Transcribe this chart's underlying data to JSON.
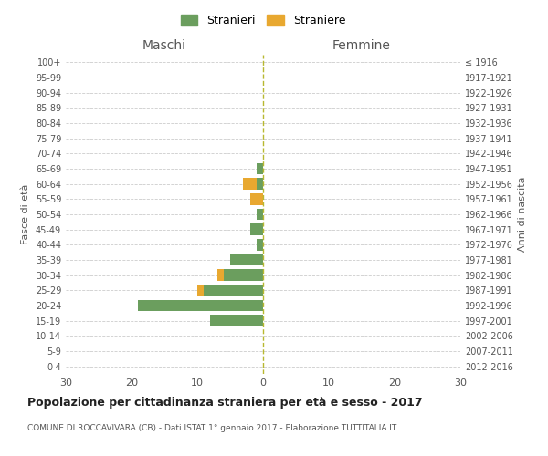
{
  "age_groups": [
    "0-4",
    "5-9",
    "10-14",
    "15-19",
    "20-24",
    "25-29",
    "30-34",
    "35-39",
    "40-44",
    "45-49",
    "50-54",
    "55-59",
    "60-64",
    "65-69",
    "70-74",
    "75-79",
    "80-84",
    "85-89",
    "90-94",
    "95-99",
    "100+"
  ],
  "birth_years": [
    "2012-2016",
    "2007-2011",
    "2002-2006",
    "1997-2001",
    "1992-1996",
    "1987-1991",
    "1982-1986",
    "1977-1981",
    "1972-1976",
    "1967-1971",
    "1962-1966",
    "1957-1961",
    "1952-1956",
    "1947-1951",
    "1942-1946",
    "1937-1941",
    "1932-1936",
    "1927-1931",
    "1922-1926",
    "1917-1921",
    "≤ 1916"
  ],
  "maschi_stranieri": [
    0,
    0,
    0,
    8,
    19,
    9,
    6,
    5,
    1,
    2,
    1,
    0,
    1,
    1,
    0,
    0,
    0,
    0,
    0,
    0,
    0
  ],
  "maschi_straniere": [
    0,
    0,
    0,
    0,
    0,
    1,
    1,
    0,
    0,
    0,
    0,
    2,
    2,
    0,
    0,
    0,
    0,
    0,
    0,
    0,
    0
  ],
  "femmine_stranieri": [
    0,
    0,
    0,
    0,
    0,
    0,
    0,
    0,
    0,
    0,
    0,
    0,
    0,
    0,
    0,
    0,
    0,
    0,
    0,
    0,
    0
  ],
  "femmine_straniere": [
    0,
    0,
    0,
    0,
    0,
    0,
    0,
    0,
    0,
    0,
    0,
    0,
    0,
    0,
    0,
    0,
    0,
    0,
    0,
    0,
    0
  ],
  "color_stranieri": "#6b9e5e",
  "color_straniere": "#e8a830",
  "title": "Popolazione per cittadinanza straniera per età e sesso - 2017",
  "subtitle": "COMUNE DI ROCCAVIVARA (CB) - Dati ISTAT 1° gennaio 2017 - Elaborazione TUTTITALIA.IT",
  "xlabel_left": "Maschi",
  "xlabel_right": "Femmine",
  "ylabel_left": "Fasce di età",
  "ylabel_right": "Anni di nascita",
  "xlim": 30,
  "background_color": "#ffffff",
  "grid_color": "#cccccc",
  "legend_stranieri": "Stranieri",
  "legend_straniere": "Straniere"
}
